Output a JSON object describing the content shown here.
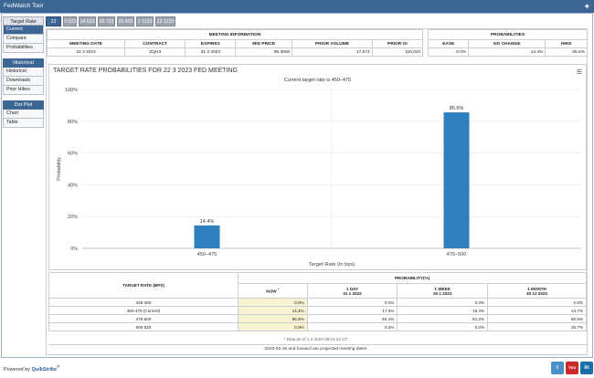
{
  "app": {
    "title": "FedWatch Tool"
  },
  "sidebar": {
    "sections": [
      {
        "heading": "Target Rate",
        "items": [
          {
            "label": "Current",
            "active": true
          },
          {
            "label": "Compare",
            "active": false
          },
          {
            "label": "Probabilities",
            "active": false
          }
        ]
      },
      {
        "heading": "Historical",
        "items": [
          {
            "label": "Historical",
            "active": false
          },
          {
            "label": "Downloads",
            "active": false
          },
          {
            "label": "Prior Hikes",
            "active": false
          }
        ]
      },
      {
        "heading": "Dot Plot",
        "items": [
          {
            "label": "Chart",
            "active": false
          },
          {
            "label": "Table",
            "active": false
          }
        ]
      }
    ]
  },
  "tabs": [
    {
      "label": "22 323",
      "active": true
    },
    {
      "label": "3 523",
      "active": false
    },
    {
      "label": "14 623",
      "active": false
    },
    {
      "label": "26 723",
      "active": false
    },
    {
      "label": "20 923",
      "active": false
    },
    {
      "label": "1 1123",
      "active": false
    },
    {
      "label": "13 1223",
      "active": false
    }
  ],
  "meeting_info": {
    "caption": "MEETING INFORMATION",
    "headers": [
      "MEETING DATE",
      "CONTRACT",
      "EXPIRES",
      "MID PRICE",
      "PRIOR VOLUME",
      "PRIOR OI"
    ],
    "row": [
      "22 3 2023",
      "ZQH3",
      "31 3 2023",
      "95.3800",
      "17,574",
      "118,020"
    ]
  },
  "probabilities": {
    "caption": "PROBABILITIES",
    "headers": [
      "EASE",
      "NO CHANGE",
      "HIKE"
    ],
    "row": [
      "0.0%",
      "14.4%",
      "85.6%"
    ]
  },
  "chart_data": {
    "type": "bar",
    "title": "TARGET RATE PROBABILITIES FOR 22 3 2023 FED MEETING",
    "subtitle": "Current target rate is 450–475",
    "categories": [
      "450–475",
      "475–500"
    ],
    "values": [
      14.4,
      85.6
    ],
    "data_labels": [
      "14.4%",
      "85.6%"
    ],
    "xlabel": "Target Rate (in bps)",
    "ylabel": "Probability",
    "ylim": [
      0,
      100
    ],
    "yticks": [
      "0%",
      "20%",
      "40%",
      "60%",
      "80%",
      "100%"
    ],
    "grid": true,
    "color": "#2e7fbf"
  },
  "rate_table": {
    "col_target": "TARGET RATE (BPS)",
    "col_prob": "PROBABILITY(%)",
    "sub_headers": [
      {
        "line1": "NOW",
        "line2": ""
      },
      {
        "line1": "1 DAY",
        "line2": "31 1 2022"
      },
      {
        "line1": "1 WEEK",
        "line2": "25 1 2023"
      },
      {
        "line1": "1 MONTH",
        "line2": "30 12 2022"
      }
    ],
    "now_marker": "*",
    "rows": [
      {
        "rate": "425-450",
        "now": "0.0%",
        "day": "0.0%",
        "week": "0.3%",
        "month": "0.0%"
      },
      {
        "rate": "450-475 (Current)",
        "now": "14.4%",
        "day": "17.3%",
        "week": "18.4%",
        "month": "13.7%"
      },
      {
        "rate": "475-500",
        "now": "85.6%",
        "day": "82.4%",
        "week": "81.2%",
        "month": "60.6%"
      },
      {
        "rate": "500-525",
        "now": "0.0%",
        "day": "0.3%",
        "week": "0.0%",
        "month": "25.7%"
      }
    ],
    "footnote": "* Data as of 1 2 2023 08:01:22 CT",
    "footnote2": "2023-03-15 and forward are projected meeting dates"
  },
  "footer": {
    "powered_by": "Powered by",
    "brand": "QuikStrike",
    "brand_mark": "®",
    "social": [
      "twitter-icon",
      "youtube-icon",
      "linkedin-icon"
    ],
    "social_labels": {
      "youtube": "You"
    }
  }
}
